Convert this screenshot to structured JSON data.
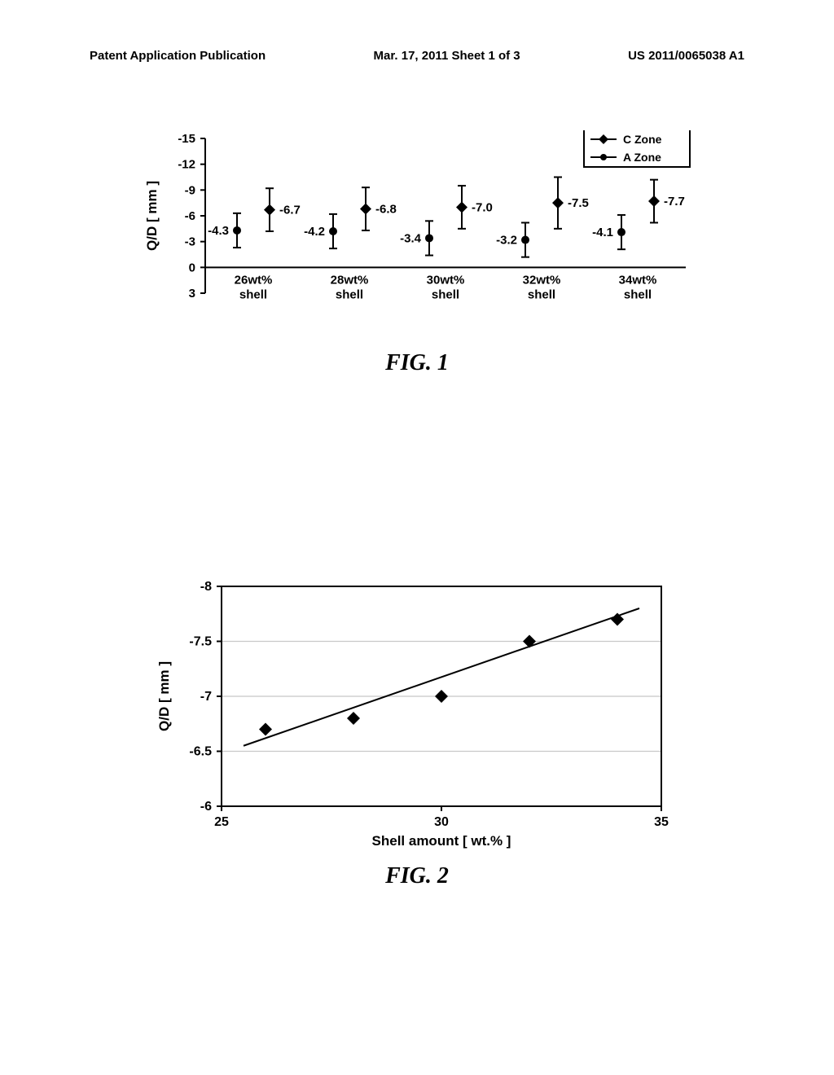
{
  "header": {
    "left": "Patent Application Publication",
    "center": "Mar. 17, 2011  Sheet 1 of 3",
    "right": "US 2011/0065038 A1"
  },
  "fig1": {
    "label": "FIG. 1",
    "type": "scatter-errorbar",
    "ylabel": "Q/D [ mm ]",
    "y_ticks": [
      -15,
      -12,
      -9,
      -6,
      -3,
      0,
      3
    ],
    "categories": [
      "26wt%\nshell",
      "28wt%\nshell",
      "30wt%\nshell",
      "32wt%\nshell",
      "34wt%\nshell"
    ],
    "legend": [
      {
        "name": "C Zone",
        "marker": "diamond",
        "color": "#000000"
      },
      {
        "name": "A Zone",
        "marker": "circle",
        "color": "#000000"
      }
    ],
    "series_czone": {
      "values": [
        -6.7,
        -6.8,
        -7.0,
        -7.5,
        -7.7
      ],
      "err_lo": [
        2.5,
        2.5,
        2.5,
        3.0,
        2.5
      ],
      "err_hi": [
        2.5,
        2.5,
        2.5,
        3.0,
        2.5
      ],
      "labels": [
        "-6.7",
        "-6.8",
        "-7.0",
        "-7.5",
        "-7.7"
      ],
      "marker_color": "#000000",
      "marker": "diamond",
      "marker_size": 7
    },
    "series_azone": {
      "values": [
        -4.3,
        -4.2,
        -3.4,
        -3.2,
        -4.1
      ],
      "err_lo": [
        2.0,
        2.0,
        2.0,
        2.0,
        2.0
      ],
      "err_hi": [
        2.0,
        2.0,
        2.0,
        2.0,
        2.0
      ],
      "labels": [
        "-4.3",
        "-4.2",
        "-3.4",
        "-3.2",
        "-4.1"
      ],
      "marker_color": "#000000",
      "marker": "circle",
      "marker_size": 5
    },
    "ylim": [
      3,
      -15
    ],
    "axis_color": "#000000",
    "axis_width": 2,
    "tick_fontsize": 15,
    "label_fontsize": 17,
    "value_fontsize": 15,
    "cat_label_fontsize": 15,
    "legend_fontsize": 14,
    "background_color": "#ffffff",
    "errorbar_width": 2,
    "cap_width": 10
  },
  "fig2": {
    "label": "FIG. 2",
    "type": "scatter-line",
    "xlabel": "Shell amount [ wt.% ]",
    "ylabel": "Q/D [ mm ]",
    "x_ticks": [
      25,
      30,
      35
    ],
    "y_ticks": [
      -6,
      -6.5,
      -7,
      -7.5,
      -8
    ],
    "xlim": [
      25,
      35
    ],
    "ylim": [
      -6,
      -8
    ],
    "points": [
      {
        "x": 26,
        "y": -6.7
      },
      {
        "x": 28,
        "y": -6.8
      },
      {
        "x": 30,
        "y": -7.0
      },
      {
        "x": 32,
        "y": -7.5
      },
      {
        "x": 34,
        "y": -7.7
      }
    ],
    "trend_x": [
      25.5,
      34.5
    ],
    "trend_y": [
      -6.55,
      -7.8
    ],
    "marker_color": "#000000",
    "marker": "diamond",
    "marker_size": 8,
    "line_color": "#000000",
    "line_width": 2,
    "axis_color": "#000000",
    "axis_width": 2,
    "tick_fontsize": 16,
    "label_fontsize": 17,
    "background_color": "#ffffff",
    "grid_color": "#c8c8c8",
    "grid_width": 1.2
  }
}
